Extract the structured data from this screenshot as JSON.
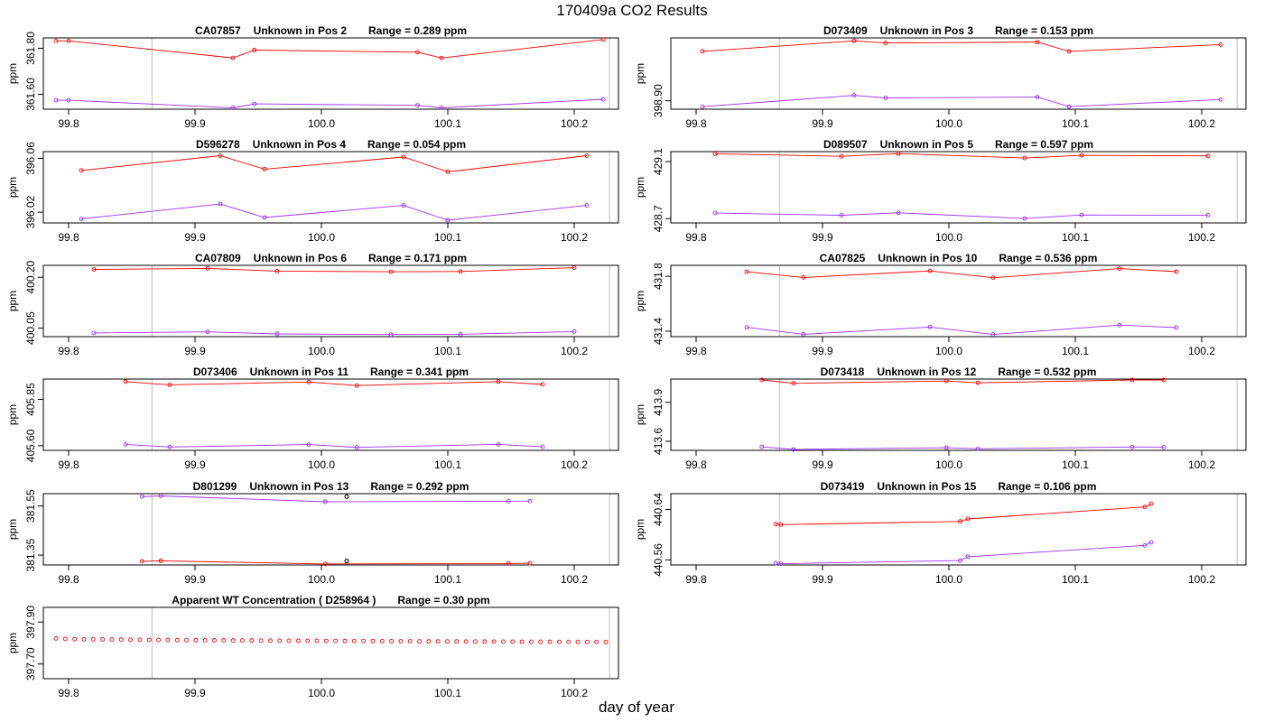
{
  "figure": {
    "title": "170409a  CO2 Results",
    "xlabel": "day of year",
    "ylabel": "ppm",
    "colors": {
      "upper": "#ff0000",
      "lower": "#9933ff",
      "marker": "#000000",
      "vline": "#c8c8c8"
    }
  },
  "chart_data": [
    {
      "type": "line",
      "id": "CA07857",
      "pos_label": "Unknown in Pos 2",
      "range_text": "Range =  0.289 ppm",
      "xlim": [
        99.78,
        100.235
      ],
      "ylim": [
        361.535,
        361.845
      ],
      "xticks": [
        "99.8",
        "99.9",
        "100.0",
        "100.1",
        "100.2"
      ],
      "yticks": [
        "361.60",
        "361.80"
      ],
      "vlines": [
        99.866,
        100.228
      ],
      "series": [
        {
          "name": "upper",
          "color": "#ff0000",
          "x": [
            99.79,
            99.8,
            99.93,
            99.947,
            100.076,
            100.095,
            100.223
          ],
          "y": [
            361.832,
            361.832,
            361.758,
            361.792,
            361.783,
            361.758,
            361.838
          ]
        },
        {
          "name": "lower",
          "color": "#9933ff",
          "x": [
            99.79,
            99.8,
            99.93,
            99.947,
            100.076,
            100.095,
            100.223
          ],
          "y": [
            361.574,
            361.574,
            361.541,
            361.558,
            361.552,
            361.541,
            361.578
          ]
        }
      ]
    },
    {
      "type": "line",
      "id": "D073409",
      "pos_label": "Unknown in Pos 3",
      "range_text": "Range =  0.153 ppm",
      "xlim": [
        99.78,
        100.235
      ],
      "ylim": [
        398.88,
        399.05
      ],
      "xticks": [
        "99.8",
        "99.9",
        "100.0",
        "100.1",
        "100.2"
      ],
      "yticks": [
        "398.90"
      ],
      "vlines": [
        99.866,
        100.228
      ],
      "series": [
        {
          "name": "upper",
          "color": "#ff0000",
          "x": [
            99.805,
            99.925,
            99.95,
            100.07,
            100.095,
            100.215
          ],
          "y": [
            399.018,
            399.043,
            399.038,
            399.04,
            399.018,
            399.034
          ]
        },
        {
          "name": "lower",
          "color": "#9933ff",
          "x": [
            99.805,
            99.925,
            99.95,
            100.07,
            100.095,
            100.215
          ],
          "y": [
            398.886,
            398.913,
            398.907,
            398.909,
            398.886,
            398.903
          ]
        }
      ]
    },
    {
      "type": "line",
      "id": "D596278",
      "pos_label": "Unknown in Pos 4",
      "range_text": "Range =  0.054 ppm",
      "xlim": [
        99.78,
        100.235
      ],
      "ylim": [
        396.012,
        396.065
      ],
      "xticks": [
        "99.8",
        "99.9",
        "100.0",
        "100.1",
        "100.2"
      ],
      "yticks": [
        "396.02",
        "396.06"
      ],
      "vlines": [
        99.866,
        100.228
      ],
      "series": [
        {
          "name": "upper",
          "color": "#ff0000",
          "x": [
            99.81,
            99.92,
            99.955,
            100.065,
            100.1,
            100.21
          ],
          "y": [
            396.051,
            396.062,
            396.052,
            396.061,
            396.05,
            396.062
          ]
        },
        {
          "name": "lower",
          "color": "#9933ff",
          "x": [
            99.81,
            99.92,
            99.955,
            100.065,
            100.1,
            100.21
          ],
          "y": [
            396.015,
            396.026,
            396.016,
            396.025,
            396.014,
            396.025
          ]
        }
      ]
    },
    {
      "type": "line",
      "id": "D089507",
      "pos_label": "Unknown in Pos 5",
      "range_text": "Range =  0.597 ppm",
      "xlim": [
        99.78,
        100.235
      ],
      "ylim": [
        428.67,
        429.17
      ],
      "xticks": [
        "99.8",
        "99.9",
        "100.0",
        "100.1",
        "100.2"
      ],
      "yticks": [
        "428.7",
        "429.1"
      ],
      "vlines": [
        99.866,
        100.228
      ],
      "series": [
        {
          "name": "upper",
          "color": "#ff0000",
          "x": [
            99.815,
            99.915,
            99.96,
            100.06,
            100.105,
            100.205
          ],
          "y": [
            429.155,
            429.137,
            429.156,
            429.125,
            429.144,
            429.14
          ]
        },
        {
          "name": "lower",
          "color": "#9933ff",
          "x": [
            99.815,
            99.915,
            99.96,
            100.06,
            100.105,
            100.205
          ],
          "y": [
            428.739,
            428.724,
            428.741,
            428.701,
            428.726,
            428.723
          ]
        }
      ]
    },
    {
      "type": "line",
      "id": "CA07809",
      "pos_label": "Unknown in Pos 6",
      "range_text": "Range =  0.171 ppm",
      "xlim": [
        99.78,
        100.235
      ],
      "ylim": [
        400.025,
        400.235
      ],
      "xticks": [
        "99.8",
        "99.9",
        "100.0",
        "100.1",
        "100.2"
      ],
      "yticks": [
        "400.05",
        "400.20"
      ],
      "vlines": [
        99.866,
        100.228
      ],
      "series": [
        {
          "name": "upper",
          "color": "#ff0000",
          "x": [
            99.82,
            99.91,
            99.965,
            100.055,
            100.11,
            100.2
          ],
          "y": [
            400.223,
            400.226,
            400.218,
            400.216,
            400.217,
            400.228
          ]
        },
        {
          "name": "lower",
          "color": "#9933ff",
          "x": [
            99.82,
            99.91,
            99.965,
            100.055,
            100.11,
            100.2
          ],
          "y": [
            400.036,
            400.039,
            400.033,
            400.031,
            400.032,
            400.04
          ]
        }
      ]
    },
    {
      "type": "line",
      "id": "CA07825",
      "pos_label": "Unknown in Pos 10",
      "range_text": "Range =  0.536 ppm",
      "xlim": [
        99.78,
        100.235
      ],
      "ylim": [
        431.36,
        431.88
      ],
      "xticks": [
        "99.8",
        "99.9",
        "100.0",
        "100.1",
        "100.2"
      ],
      "yticks": [
        "431.4",
        "431.8"
      ],
      "vlines": [
        99.866,
        100.228
      ],
      "series": [
        {
          "name": "upper",
          "color": "#ff0000",
          "x": [
            99.84,
            99.885,
            99.985,
            100.035,
            100.135,
            100.18
          ],
          "y": [
            431.833,
            431.792,
            431.839,
            431.79,
            431.856,
            431.834
          ]
        },
        {
          "name": "lower",
          "color": "#9933ff",
          "x": [
            99.84,
            99.885,
            99.985,
            100.035,
            100.135,
            100.18
          ],
          "y": [
            431.428,
            431.377,
            431.43,
            431.376,
            431.444,
            431.426
          ]
        }
      ]
    },
    {
      "type": "line",
      "id": "D073406",
      "pos_label": "Unknown in Pos 11",
      "range_text": "Range =  0.341 ppm",
      "xlim": [
        99.78,
        100.235
      ],
      "ylim": [
        405.575,
        405.96
      ],
      "xticks": [
        "99.8",
        "99.9",
        "100.0",
        "100.1",
        "100.2"
      ],
      "yticks": [
        "405.60",
        "405.85"
      ],
      "vlines": [
        99.866,
        100.228
      ],
      "series": [
        {
          "name": "upper",
          "color": "#ff0000",
          "x": [
            99.845,
            99.88,
            99.99,
            100.028,
            100.14,
            100.175
          ],
          "y": [
            405.946,
            405.929,
            405.944,
            405.925,
            405.946,
            405.931
          ]
        },
        {
          "name": "lower",
          "color": "#9933ff",
          "x": [
            99.845,
            99.88,
            99.99,
            100.028,
            100.14,
            100.175
          ],
          "y": [
            405.607,
            405.593,
            405.606,
            405.591,
            405.607,
            405.594
          ]
        }
      ]
    },
    {
      "type": "line",
      "id": "D073418",
      "pos_label": "Unknown in Pos 12",
      "range_text": "Range =  0.532 ppm",
      "xlim": [
        99.78,
        100.235
      ],
      "ylim": [
        413.53,
        414.08
      ],
      "xticks": [
        "99.8",
        "99.9",
        "100.0",
        "100.1",
        "100.2"
      ],
      "yticks": [
        "413.6",
        "413.9"
      ],
      "vlines": [
        99.866,
        100.228
      ],
      "series": [
        {
          "name": "upper",
          "color": "#ff0000",
          "x": [
            99.852,
            99.877,
            99.998,
            100.023,
            100.145,
            100.17
          ],
          "y": [
            414.073,
            414.047,
            414.065,
            414.051,
            414.073,
            414.073
          ]
        },
        {
          "name": "lower",
          "color": "#9933ff",
          "x": [
            99.852,
            99.877,
            99.998,
            100.023,
            100.145,
            100.17
          ],
          "y": [
            413.557,
            413.537,
            413.55,
            413.542,
            413.556,
            413.555
          ]
        }
      ]
    },
    {
      "type": "line",
      "id": "D801299",
      "pos_label": "Unknown in Pos 13",
      "range_text": "Range =  0.292 ppm",
      "xlim": [
        99.78,
        100.235
      ],
      "ylim": [
        381.31,
        381.6
      ],
      "xticks": [
        "99.8",
        "99.9",
        "100.0",
        "100.1",
        "100.2"
      ],
      "yticks": [
        "381.35",
        "381.55"
      ],
      "vlines": [
        99.866,
        100.228
      ],
      "series": [
        {
          "name": "upper",
          "color": "#9933ff",
          "x": [
            99.858,
            99.873,
            100.003,
            100.148,
            100.165
          ],
          "y": [
            381.588,
            381.591,
            381.567,
            381.569,
            381.57
          ]
        },
        {
          "name": "lower",
          "color": "#ff0000",
          "x": [
            99.858,
            99.873,
            100.003,
            100.148,
            100.165
          ],
          "y": [
            381.325,
            381.327,
            381.314,
            381.316,
            381.317
          ]
        }
      ],
      "markers": [
        {
          "x": 100.02,
          "y": 381.588
        },
        {
          "x": 100.02,
          "y": 381.326
        }
      ]
    },
    {
      "type": "line",
      "id": "D073419",
      "pos_label": "Unknown in Pos 15",
      "range_text": "Range =  0.106 ppm",
      "xlim": [
        99.78,
        100.235
      ],
      "ylim": [
        440.552,
        440.665
      ],
      "xticks": [
        "99.8",
        "99.9",
        "100.0",
        "100.1",
        "100.2"
      ],
      "yticks": [
        "440.56",
        "440.64"
      ],
      "vlines": [
        99.866,
        100.228
      ],
      "series": [
        {
          "name": "upper",
          "color": "#ff0000",
          "x": [
            99.863,
            99.867,
            100.009,
            100.015,
            100.155,
            100.16
          ],
          "y": [
            440.617,
            440.616,
            440.621,
            440.625,
            440.644,
            440.649
          ]
        },
        {
          "name": "lower",
          "color": "#9933ff",
          "x": [
            99.863,
            99.867,
            100.009,
            100.015,
            100.155,
            100.16
          ],
          "y": [
            440.555,
            440.554,
            440.559,
            440.565,
            440.583,
            440.588
          ]
        }
      ]
    },
    {
      "type": "scatter",
      "id": "Apparent WT Concentration ( D258964 )",
      "pos_label": "",
      "range_text": "Range = 0.30 ppm",
      "xlim": [
        99.78,
        100.235
      ],
      "ylim": [
        397.63,
        397.97
      ],
      "xticks": [
        "99.8",
        "99.9",
        "100.0",
        "100.1",
        "100.2"
      ],
      "yticks": [
        "397.70",
        "397.90"
      ],
      "vlines": [
        99.866,
        100.228
      ],
      "scatter": {
        "color": "#ff0000",
        "x_start": 99.79,
        "x_end": 100.225,
        "count": 60,
        "y_start": 397.822,
        "y_end": 397.805
      }
    }
  ]
}
